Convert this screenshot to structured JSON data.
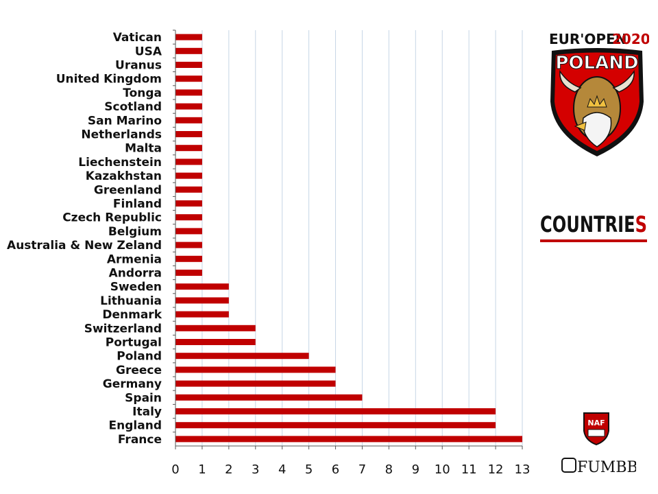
{
  "chart_data": {
    "type": "bar",
    "orientation": "horizontal",
    "title": "COUNTRIES",
    "categories": [
      "Vatican",
      "USA",
      "Uranus",
      "United Kingdom",
      "Tonga",
      "Scotland",
      "San Marino",
      "Netherlands",
      "Malta",
      "Liechenstein",
      "Kazakhstan",
      "Greenland",
      "Finland",
      "Czech Republic",
      "Belgium",
      "Australia & New Zeland",
      "Armenia",
      "Andorra",
      "Sweden",
      "Lithuania",
      "Denmark",
      "Switzerland",
      "Portugal",
      "Poland",
      "Greece",
      "Germany",
      "Spain",
      "Italy",
      "England",
      "France"
    ],
    "values": [
      1,
      1,
      1,
      1,
      1,
      1,
      1,
      1,
      1,
      1,
      1,
      1,
      1,
      1,
      1,
      1,
      1,
      1,
      2,
      2,
      2,
      3,
      3,
      5,
      6,
      6,
      7,
      12,
      12,
      13
    ],
    "xlim": [
      0,
      13
    ],
    "xticks": [
      0,
      1,
      2,
      3,
      4,
      5,
      6,
      7,
      8,
      9,
      10,
      11,
      12,
      13
    ],
    "grid": "vertical",
    "bar_color": "#c00000",
    "legend": "none"
  },
  "logos": {
    "europen": {
      "line1": "EUR'OPEN",
      "year": "2020",
      "line2": "POLAND"
    },
    "countries": {
      "main": "COUNTRIE",
      "last": "S"
    },
    "naf": {
      "text": "NAF"
    },
    "fumbbl": {
      "text": "FUMBBL"
    }
  },
  "colors": {
    "accent_red": "#c00000",
    "dark_red": "#8b0000",
    "gold": "#c89b3c",
    "grid": "#c6d5e6",
    "text": "#111111"
  }
}
